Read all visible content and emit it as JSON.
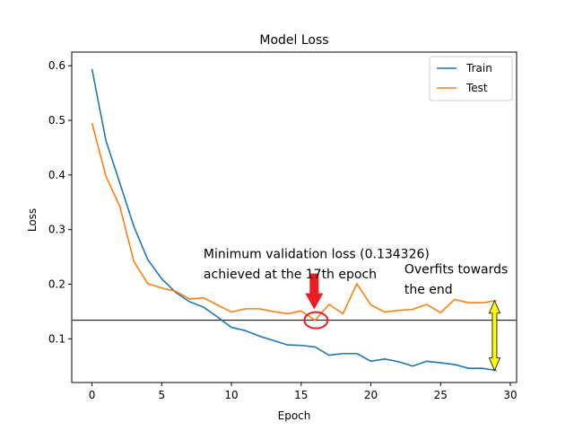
{
  "chart_data": {
    "type": "line",
    "title": "Model Loss",
    "xlabel": "Epoch",
    "ylabel": "Loss",
    "xlim": [
      -1.45,
      30.45
    ],
    "ylim": [
      0.02,
      0.625
    ],
    "xticks": [
      0,
      5,
      10,
      15,
      20,
      25,
      30
    ],
    "yticks": [
      0.1,
      0.2,
      0.3,
      0.4,
      0.5,
      0.6
    ],
    "grid": false,
    "legend": "top-right",
    "x": [
      0,
      1,
      2,
      3,
      4,
      5,
      6,
      7,
      8,
      9,
      10,
      11,
      12,
      13,
      14,
      15,
      16,
      17,
      18,
      19,
      20,
      21,
      22,
      23,
      24,
      25,
      26,
      27,
      28,
      29
    ],
    "series": [
      {
        "name": "Train",
        "color": "#1f77b4",
        "values": [
          0.594,
          0.463,
          0.385,
          0.306,
          0.245,
          0.21,
          0.185,
          0.168,
          0.158,
          0.14,
          0.121,
          0.115,
          0.105,
          0.097,
          0.089,
          0.088,
          0.085,
          0.07,
          0.073,
          0.073,
          0.059,
          0.063,
          0.058,
          0.05,
          0.059,
          0.056,
          0.053,
          0.046,
          0.046,
          0.042
        ]
      },
      {
        "name": "Test",
        "color": "#ff7f0e",
        "values": [
          0.495,
          0.398,
          0.342,
          0.242,
          0.201,
          0.193,
          0.187,
          0.173,
          0.175,
          0.162,
          0.149,
          0.155,
          0.155,
          0.15,
          0.146,
          0.151,
          0.134,
          0.163,
          0.146,
          0.201,
          0.162,
          0.149,
          0.152,
          0.154,
          0.163,
          0.148,
          0.172,
          0.166,
          0.166,
          0.17
        ]
      }
    ],
    "reference_line": {
      "y": 0.134,
      "color": "#000000"
    },
    "annotations": [
      {
        "text": "Minimum validation loss (0.134326)",
        "x": 8,
        "y": 0.248
      },
      {
        "text": "achieved at the 17th epoch",
        "x": 8,
        "y": 0.211
      },
      {
        "text": "Overfits towards",
        "x": 22.4,
        "y": 0.22
      },
      {
        "text": "the end",
        "x": 22.4,
        "y": 0.183
      }
    ],
    "markers": {
      "arrow_color": "#ed1c24",
      "circle_color": "#ed1c24",
      "circle_at": {
        "x": 16,
        "y": 0.134
      },
      "double_arrow_color": "#ffff00",
      "double_arrow_at": {
        "x": 29,
        "y_top": 0.17,
        "y_bottom": 0.042
      }
    }
  }
}
